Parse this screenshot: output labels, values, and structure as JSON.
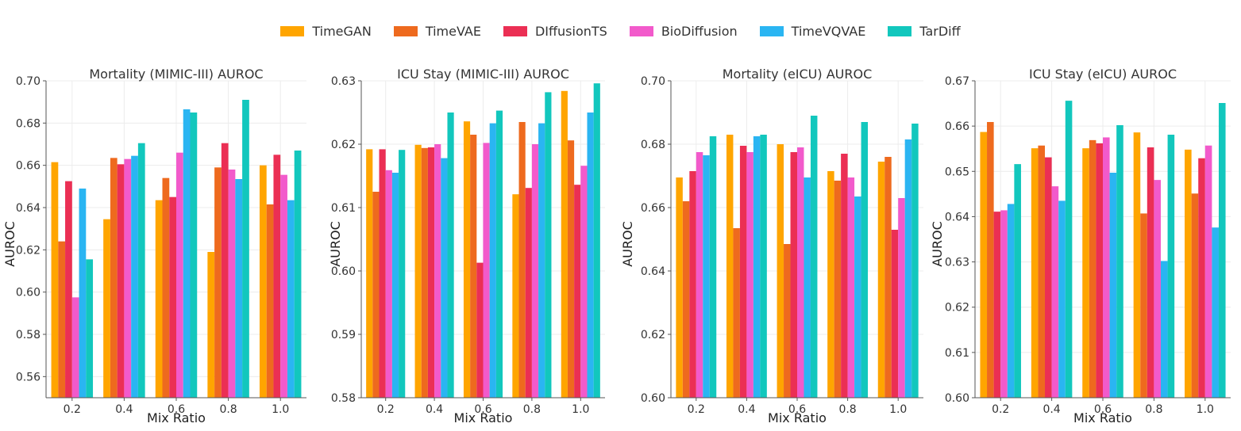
{
  "legend": [
    {
      "label": "TimeGAN",
      "color": "#FFA500"
    },
    {
      "label": "TimeVAE",
      "color": "#EE6A1E"
    },
    {
      "label": "DIffusionTS",
      "color": "#EB2F54"
    },
    {
      "label": "BioDiffusion",
      "color": "#F25ACB"
    },
    {
      "label": "TimeVQVAE",
      "color": "#2AB5F2"
    },
    {
      "label": "TarDiff",
      "color": "#12C7BD"
    }
  ],
  "chart_data": [
    {
      "type": "bar",
      "title": "Mortality (MIMIC-III) AUROC",
      "xlabel": "Mix Ratio",
      "ylabel": "AUROC",
      "ylim": [
        0.55,
        0.7
      ],
      "yticks": [
        "0.56",
        "0.58",
        "0.60",
        "0.62",
        "0.64",
        "0.66",
        "0.68",
        "0.70"
      ],
      "categories": [
        "0.2",
        "0.4",
        "0.6",
        "0.8",
        "1.0"
      ],
      "series": [
        {
          "name": "TimeGAN",
          "values": [
            0.6615,
            0.6345,
            0.6435,
            0.619,
            0.66
          ]
        },
        {
          "name": "TimeVAE",
          "values": [
            0.624,
            0.6635,
            0.654,
            0.659,
            0.6415
          ]
        },
        {
          "name": "DIffusionTS",
          "values": [
            0.6525,
            0.6605,
            0.645,
            0.6705,
            0.665
          ]
        },
        {
          "name": "BioDiffusion",
          "values": [
            0.5975,
            0.663,
            0.666,
            0.658,
            0.6555
          ]
        },
        {
          "name": "TimeVQVAE",
          "values": [
            0.649,
            0.6645,
            0.6865,
            0.6535,
            0.6435
          ]
        },
        {
          "name": "TarDiff",
          "values": [
            0.6155,
            0.6705,
            0.685,
            0.691,
            0.667
          ]
        }
      ]
    },
    {
      "type": "bar",
      "title": "ICU Stay (MIMIC-III) AUROC",
      "xlabel": "Mix Ratio",
      "ylabel": "AUROC",
      "ylim": [
        0.58,
        0.63
      ],
      "yticks": [
        "0.58",
        "0.59",
        "0.60",
        "0.61",
        "0.62",
        "0.63"
      ],
      "categories": [
        "0.2",
        "0.4",
        "0.6",
        "0.8",
        "1.0"
      ],
      "series": [
        {
          "name": "TimeGAN",
          "values": [
            0.6192,
            0.6199,
            0.6236,
            0.6121,
            0.6284
          ]
        },
        {
          "name": "TimeVAE",
          "values": [
            0.6125,
            0.6194,
            0.6215,
            0.6235,
            0.6206
          ]
        },
        {
          "name": "DIffusionTS",
          "values": [
            0.6192,
            0.6195,
            0.6013,
            0.6131,
            0.6136
          ]
        },
        {
          "name": "BioDiffusion",
          "values": [
            0.6159,
            0.62,
            0.6202,
            0.62,
            0.6166
          ]
        },
        {
          "name": "TimeVQVAE",
          "values": [
            0.6155,
            0.6178,
            0.6233,
            0.6233,
            0.625
          ]
        },
        {
          "name": "TarDiff",
          "values": [
            0.6191,
            0.625,
            0.6253,
            0.6282,
            0.6296
          ]
        }
      ]
    },
    {
      "type": "bar",
      "title": "Mortality (eICU) AUROC",
      "xlabel": "Mix Ratio",
      "ylabel": "AUROC",
      "ylim": [
        0.6,
        0.7
      ],
      "yticks": [
        "0.60",
        "0.62",
        "0.64",
        "0.66",
        "0.68",
        "0.70"
      ],
      "categories": [
        "0.2",
        "0.4",
        "0.6",
        "0.8",
        "1.0"
      ],
      "series": [
        {
          "name": "TimeGAN",
          "values": [
            0.6695,
            0.683,
            0.68,
            0.6715,
            0.6745
          ]
        },
        {
          "name": "TimeVAE",
          "values": [
            0.662,
            0.6535,
            0.6485,
            0.6685,
            0.676
          ]
        },
        {
          "name": "DIffusionTS",
          "values": [
            0.6715,
            0.6795,
            0.6775,
            0.677,
            0.653
          ]
        },
        {
          "name": "BioDiffusion",
          "values": [
            0.6775,
            0.6775,
            0.679,
            0.6695,
            0.663
          ]
        },
        {
          "name": "TimeVQVAE",
          "values": [
            0.6765,
            0.6825,
            0.6695,
            0.6635,
            0.6815
          ]
        },
        {
          "name": "TarDiff",
          "values": [
            0.6825,
            0.683,
            0.689,
            0.687,
            0.6865
          ]
        }
      ]
    },
    {
      "type": "bar",
      "title": "ICU Stay (eICU) AUROC",
      "xlabel": "Mix Ratio",
      "ylabel": "AUROC",
      "ylim": [
        0.6,
        0.67
      ],
      "yticks": [
        "0.60",
        "0.61",
        "0.62",
        "0.63",
        "0.64",
        "0.65",
        "0.66",
        "0.67"
      ],
      "categories": [
        "0.2",
        "0.4",
        "0.6",
        "0.8",
        "1.0"
      ],
      "series": [
        {
          "name": "TimeGAN",
          "values": [
            0.6587,
            0.6551,
            0.6551,
            0.6586,
            0.6548
          ]
        },
        {
          "name": "TimeVAE",
          "values": [
            0.6609,
            0.6557,
            0.6569,
            0.6407,
            0.6451
          ]
        },
        {
          "name": "DIffusionTS",
          "values": [
            0.6411,
            0.6531,
            0.6562,
            0.6553,
            0.6529
          ]
        },
        {
          "name": "BioDiffusion",
          "values": [
            0.6414,
            0.6467,
            0.6575,
            0.6481,
            0.6557
          ]
        },
        {
          "name": "TimeVQVAE",
          "values": [
            0.6428,
            0.6435,
            0.6497,
            0.6302,
            0.6376
          ]
        },
        {
          "name": "TarDiff",
          "values": [
            0.6516,
            0.6656,
            0.6602,
            0.6581,
            0.6651
          ]
        }
      ]
    }
  ]
}
